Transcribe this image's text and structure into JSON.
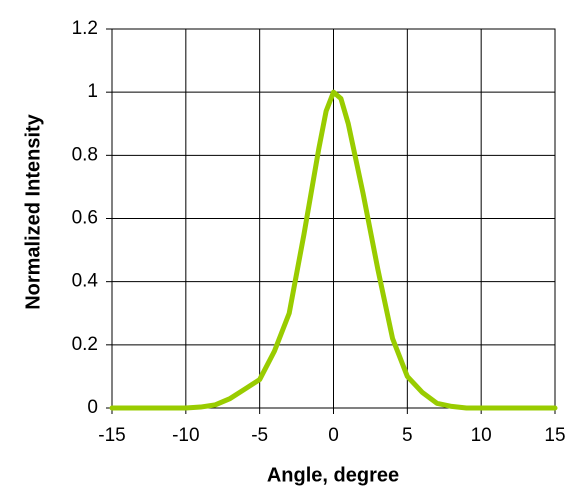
{
  "chart_data": {
    "type": "line",
    "x_label": "Angle, degree",
    "y_label": "Normalized Intensity",
    "x": [
      -15,
      -10,
      -9,
      -8,
      -7,
      -6,
      -5,
      -4,
      -3,
      -2,
      -1,
      -0.5,
      0,
      0.5,
      1,
      2,
      3,
      4,
      5,
      6,
      7,
      8,
      9,
      10,
      15
    ],
    "series": [
      {
        "name": "Normalized Intensity",
        "color": "#99cc00",
        "values": [
          0,
          0,
          0.003,
          0.01,
          0.03,
          0.06,
          0.09,
          0.18,
          0.3,
          0.55,
          0.82,
          0.94,
          1,
          0.98,
          0.9,
          0.68,
          0.44,
          0.22,
          0.1,
          0.05,
          0.015,
          0.005,
          0,
          0,
          0
        ]
      }
    ],
    "xlim": [
      -15,
      15
    ],
    "xticks": [
      -15,
      -10,
      -5,
      0,
      5,
      10,
      15
    ],
    "ylim": [
      0,
      1.2
    ],
    "yticks": [
      0,
      0.2,
      0.4,
      0.6,
      0.8,
      1,
      1.2
    ],
    "grid": true
  }
}
